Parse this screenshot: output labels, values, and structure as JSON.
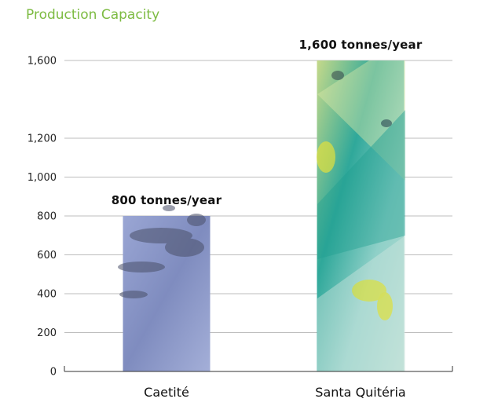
{
  "chart_data": {
    "type": "bar",
    "title": "Production Capacity",
    "categories": [
      "Caetité",
      "Santa Quitéria"
    ],
    "values": [
      800,
      1600
    ],
    "data_labels": [
      "800 tonnes/year",
      "1,600 tonnes/year"
    ],
    "yticks": [
      0,
      200,
      400,
      600,
      800,
      1000,
      1200,
      1600
    ],
    "ytick_labels": [
      "0",
      "200",
      "400",
      "600",
      "800",
      "1,000",
      "1,200",
      "1,600"
    ],
    "ylim": [
      0,
      1600
    ],
    "xlabel": "",
    "ylabel": "",
    "grid": true,
    "bar_colors": [
      "#8f9cc9",
      "#7cc0a4"
    ],
    "title_color": "#7dbb42"
  }
}
